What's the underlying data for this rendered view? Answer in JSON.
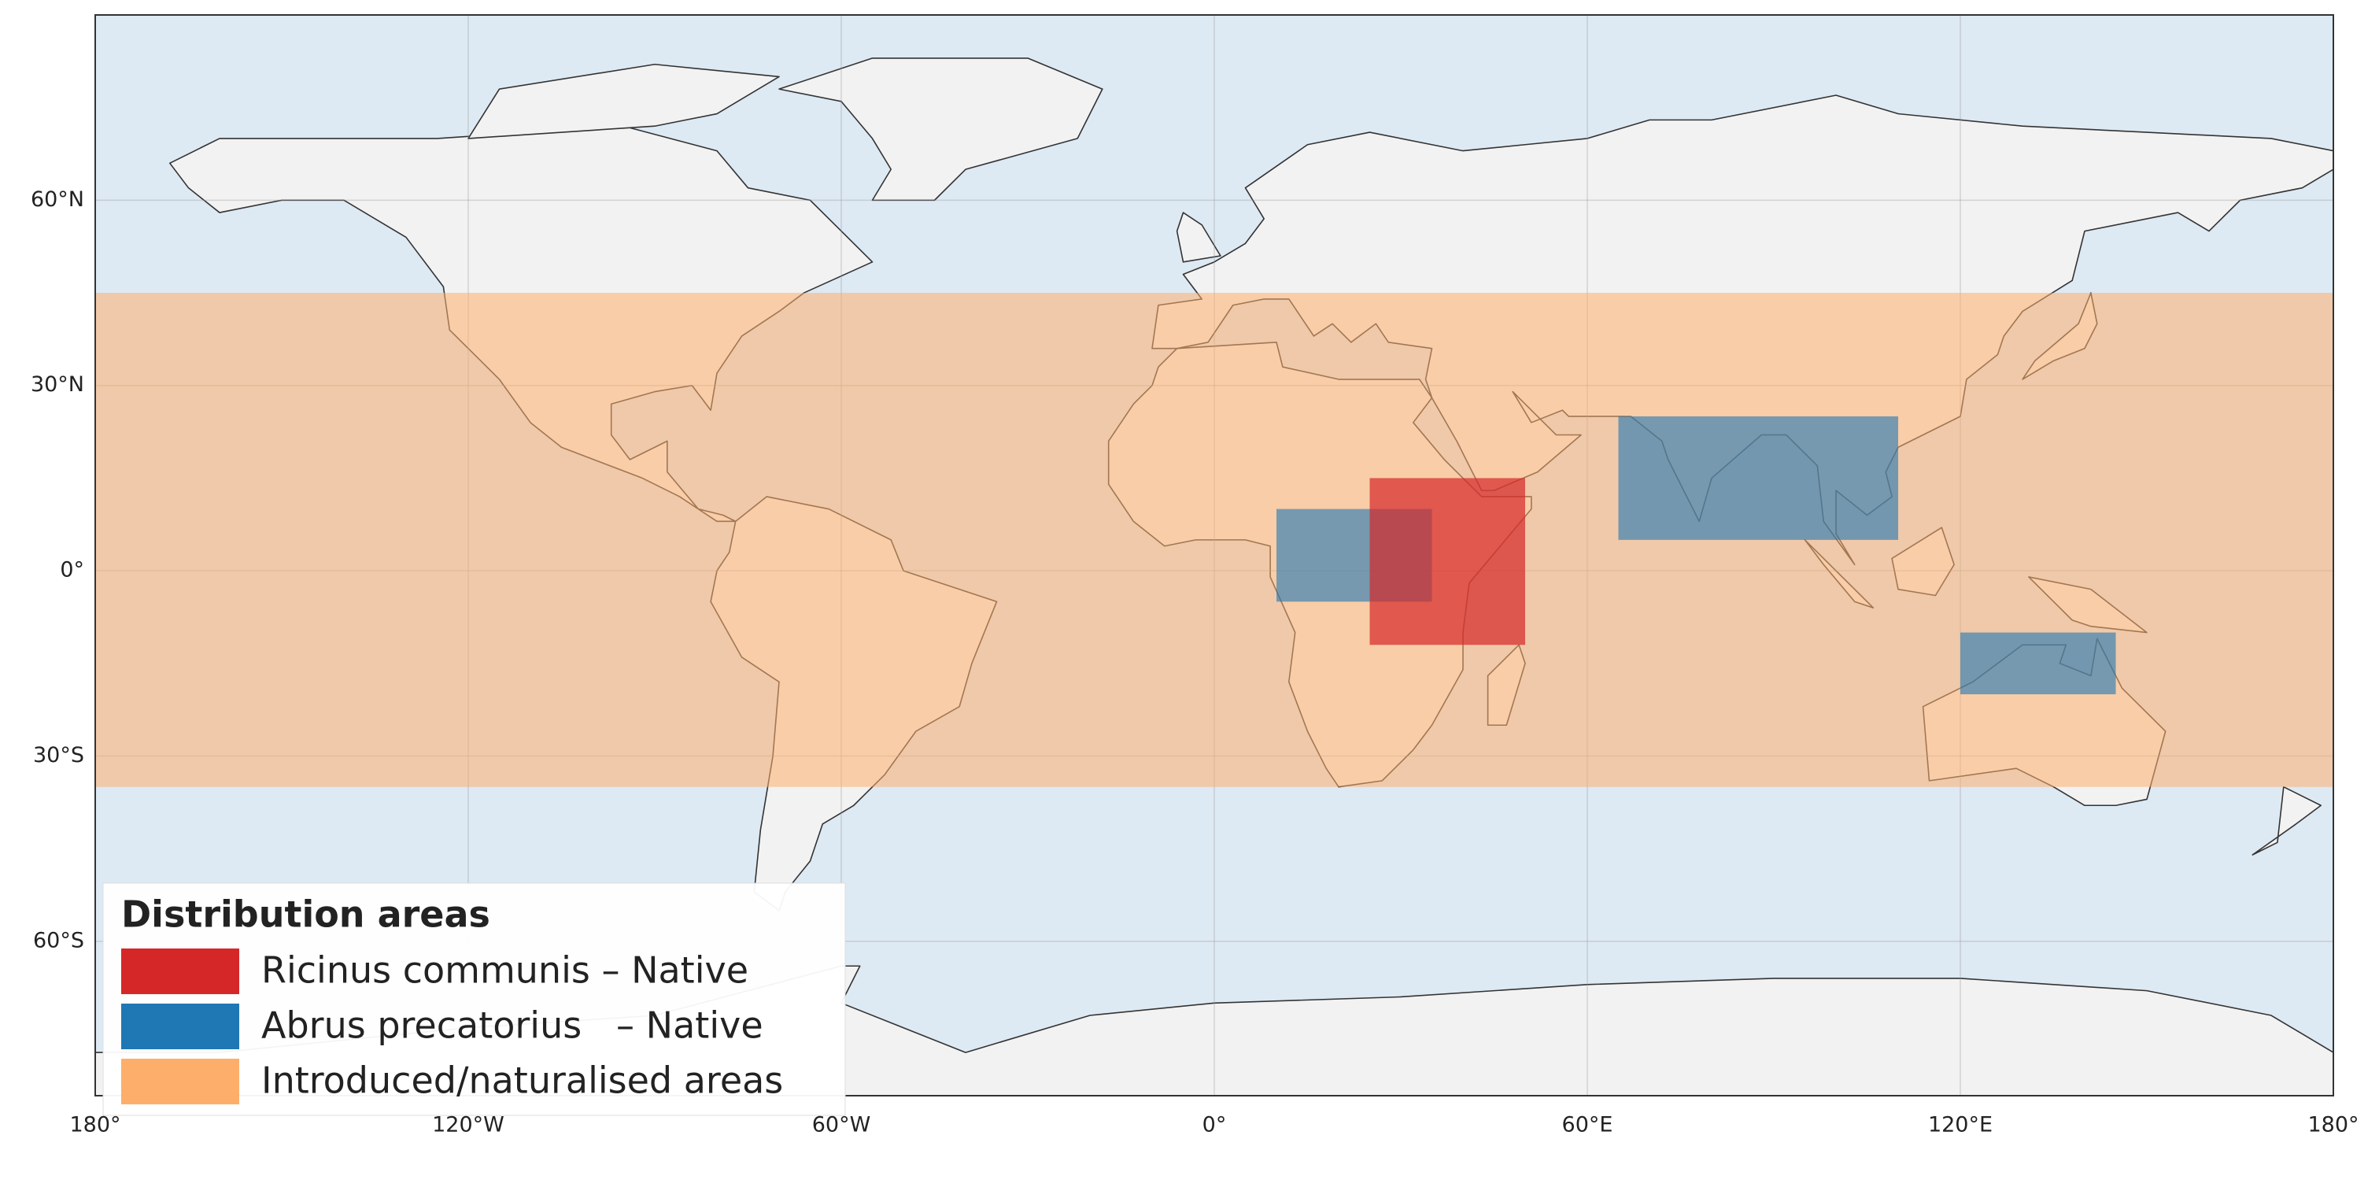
{
  "chart_data": {
    "type": "map",
    "xlim": [
      -180,
      180
    ],
    "ylim": [
      -85,
      90
    ],
    "xticks": [
      {
        "value": -180,
        "label": "180°"
      },
      {
        "value": -120,
        "label": "120°W"
      },
      {
        "value": -60,
        "label": "60°W"
      },
      {
        "value": 0,
        "label": "0°"
      },
      {
        "value": 60,
        "label": "60°E"
      },
      {
        "value": 120,
        "label": "120°E"
      },
      {
        "value": 180,
        "label": "180°"
      }
    ],
    "yticks": [
      {
        "value": 60,
        "label": "60°N"
      },
      {
        "value": 30,
        "label": "30°N"
      },
      {
        "value": 0,
        "label": "0°"
      },
      {
        "value": -30,
        "label": "30°S"
      },
      {
        "value": -60,
        "label": "60°S"
      }
    ],
    "grid": true,
    "legend": {
      "title": "Distribution areas",
      "location": "lower left"
    },
    "series": [
      {
        "name": "Ricinus communis – Native",
        "color": "#d62728",
        "alpha": 0.7,
        "regions": [
          {
            "lon": [
              25,
              50
            ],
            "lat": [
              -12,
              15
            ]
          }
        ]
      },
      {
        "name": "Abrus precatorius   – Native",
        "color": "#1f77b4",
        "alpha": 0.6,
        "regions": [
          {
            "lon": [
              10,
              35
            ],
            "lat": [
              -5,
              10
            ]
          },
          {
            "lon": [
              65,
              110
            ],
            "lat": [
              5,
              25
            ]
          },
          {
            "lon": [
              120,
              145
            ],
            "lat": [
              -20,
              -10
            ]
          }
        ]
      },
      {
        "name": "Introduced/naturalised areas",
        "color": "#fdae6b",
        "alpha": 0.55,
        "regions": [
          {
            "lon": [
              -180,
              180
            ],
            "lat": [
              -35,
              45
            ]
          }
        ]
      }
    ]
  }
}
